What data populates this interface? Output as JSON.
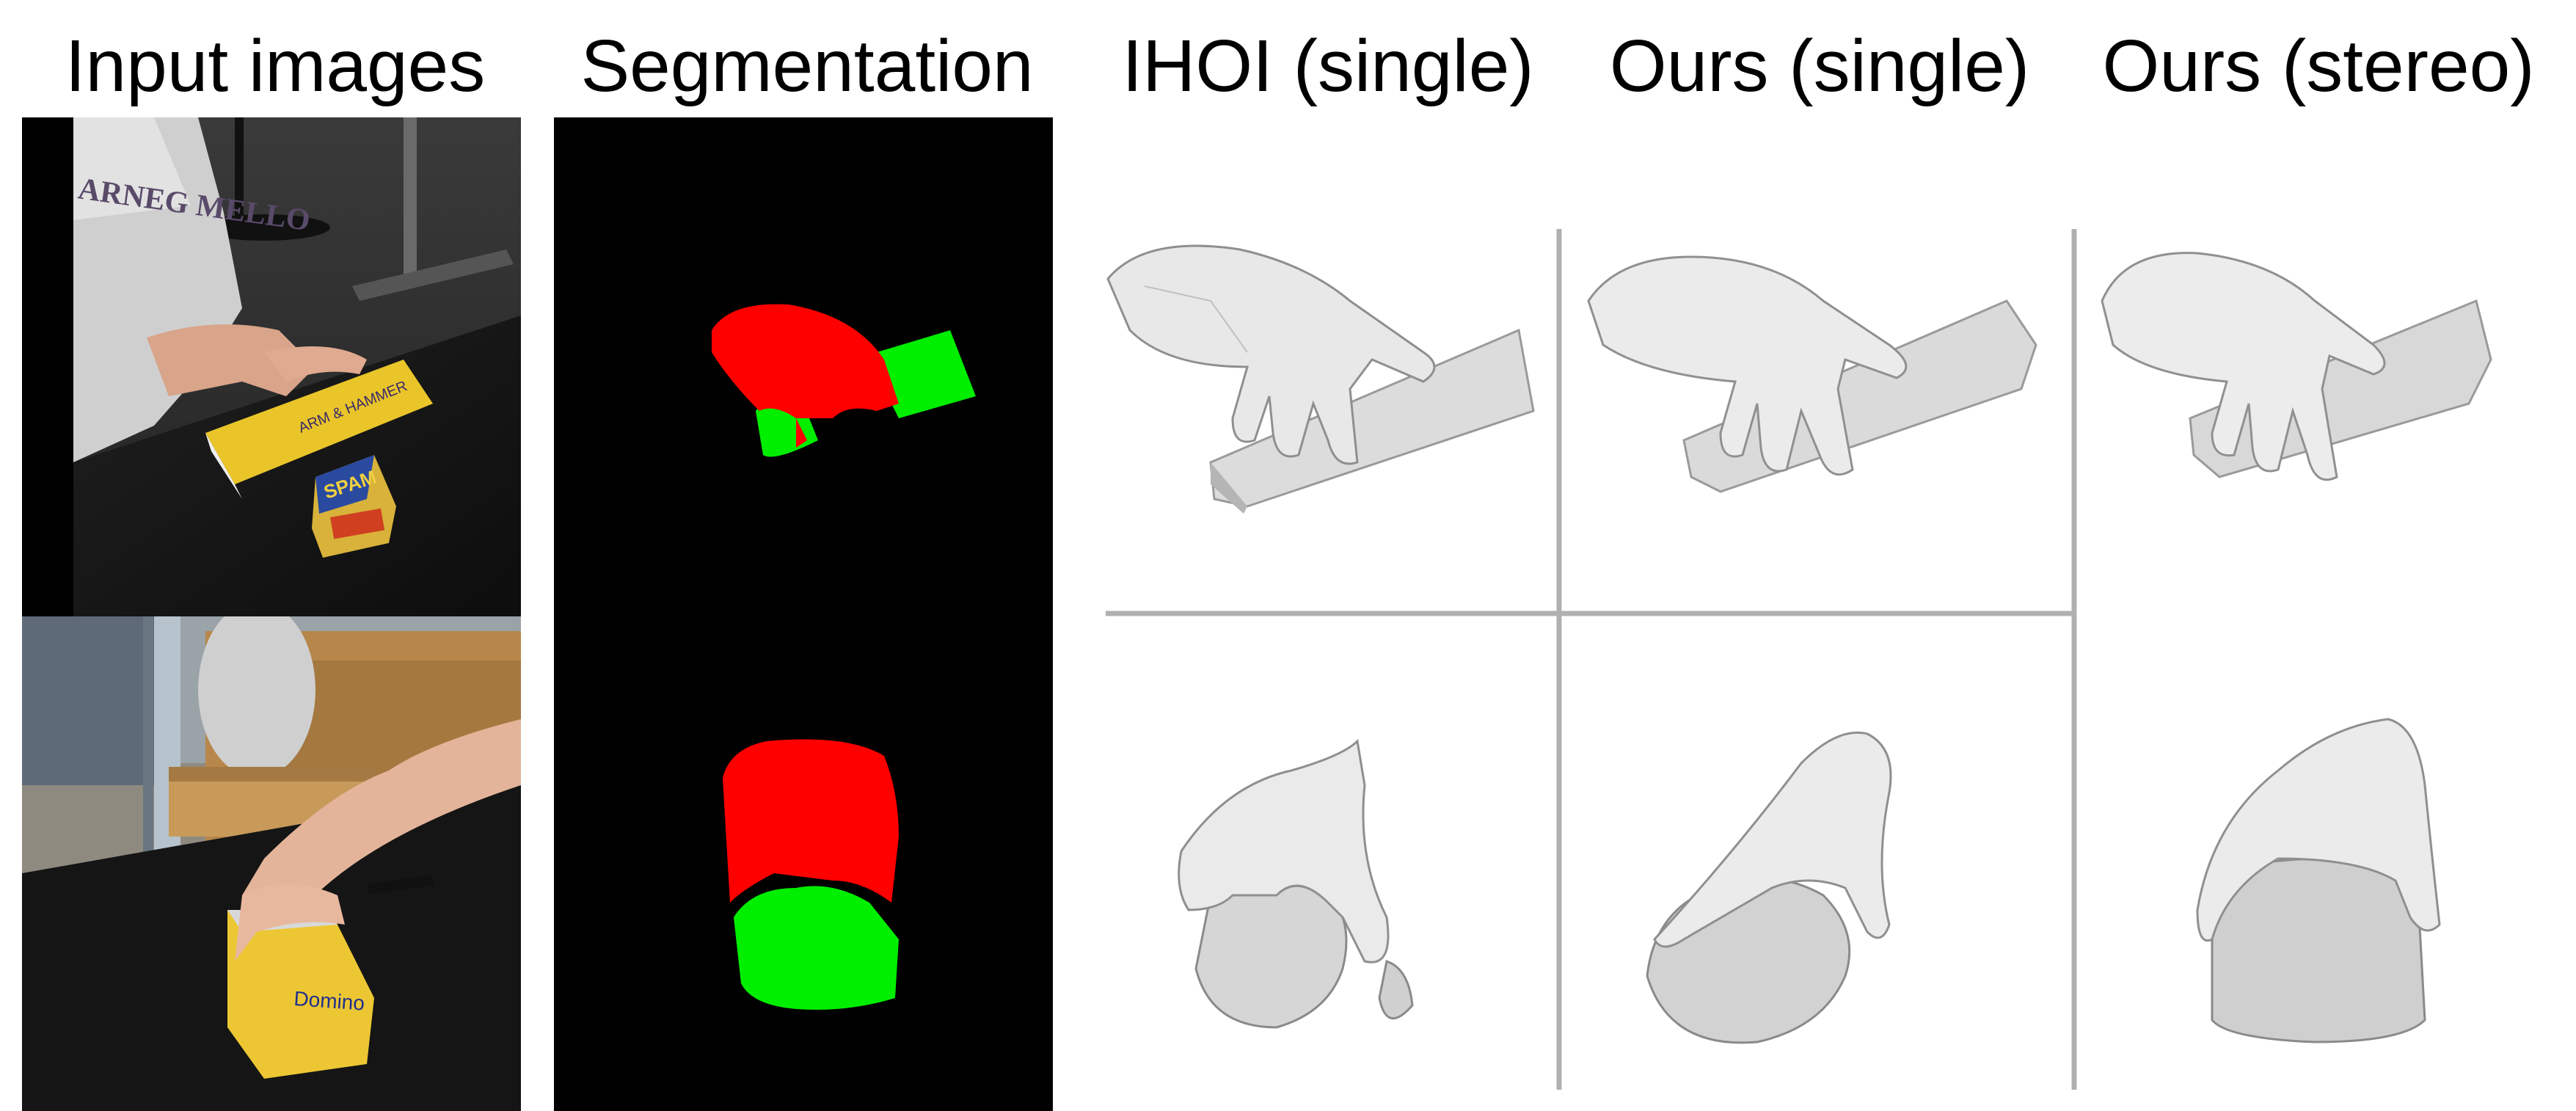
{
  "figure": {
    "columns": [
      {
        "id": "input",
        "title": "Input images"
      },
      {
        "id": "segmentation",
        "title": "Segmentation"
      },
      {
        "id": "ihoi",
        "title": "IHOI (single)"
      },
      {
        "id": "ours_single",
        "title": "Ours (single)"
      },
      {
        "id": "ours_stereo",
        "title": "Ours (stereo)"
      }
    ],
    "rows": [
      {
        "input_photo": {
          "shirt_text": "ARNEG MELLO",
          "box_brand": "ARM & HAMMER",
          "can_brand": "SPAM"
        },
        "segmentation_colors": {
          "hand": "#ff0000",
          "object": "#00ee00",
          "background": "#000000"
        }
      },
      {
        "input_photo": {
          "box_brand": "Domino"
        },
        "segmentation_colors": {
          "hand": "#ff0000",
          "object": "#00ee00",
          "background": "#000000"
        }
      }
    ],
    "colors": {
      "divider": "#b0b0b0",
      "mesh_fill": "#e6e6e6",
      "mesh_shadow": "#a8a8a8"
    }
  }
}
